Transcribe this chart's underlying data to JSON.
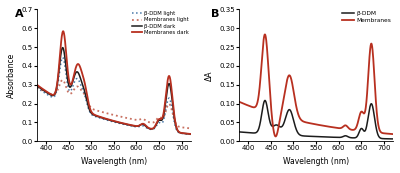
{
  "panel_A": {
    "title": "A",
    "xlabel": "Wavelength (nm)",
    "ylabel": "Absorbance",
    "xlim": [
      380,
      720
    ],
    "ylim": [
      0,
      0.7
    ],
    "yticks": [
      0.0,
      0.1,
      0.2,
      0.3,
      0.4,
      0.5,
      0.6,
      0.7
    ],
    "xticks": [
      400,
      450,
      500,
      550,
      600,
      650,
      700
    ],
    "legend": [
      {
        "label": "β-DDM dark",
        "color": "#1c1c1c",
        "ls": "solid",
        "lw": 1.1
      },
      {
        "label": "β-DDM light",
        "color": "#4878a8",
        "ls": "dotted",
        "lw": 1.1
      },
      {
        "label": "Membranes dark",
        "color": "#b83020",
        "ls": "solid",
        "lw": 1.3
      },
      {
        "label": "Membranes light",
        "color": "#c87060",
        "ls": "dotted",
        "lw": 1.3
      }
    ]
  },
  "panel_B": {
    "title": "B",
    "xlabel": "Wavelength (nm)",
    "ylabel": "ΔA",
    "xlim": [
      380,
      720
    ],
    "ylim": [
      0,
      0.35
    ],
    "yticks": [
      0.0,
      0.05,
      0.1,
      0.15,
      0.2,
      0.25,
      0.3,
      0.35
    ],
    "xticks": [
      400,
      450,
      500,
      550,
      600,
      650,
      700
    ],
    "legend": [
      {
        "label": "β-DDM",
        "color": "#1c1c1c",
        "ls": "solid",
        "lw": 1.1
      },
      {
        "label": "Membranes",
        "color": "#b83020",
        "ls": "solid",
        "lw": 1.3
      }
    ]
  }
}
